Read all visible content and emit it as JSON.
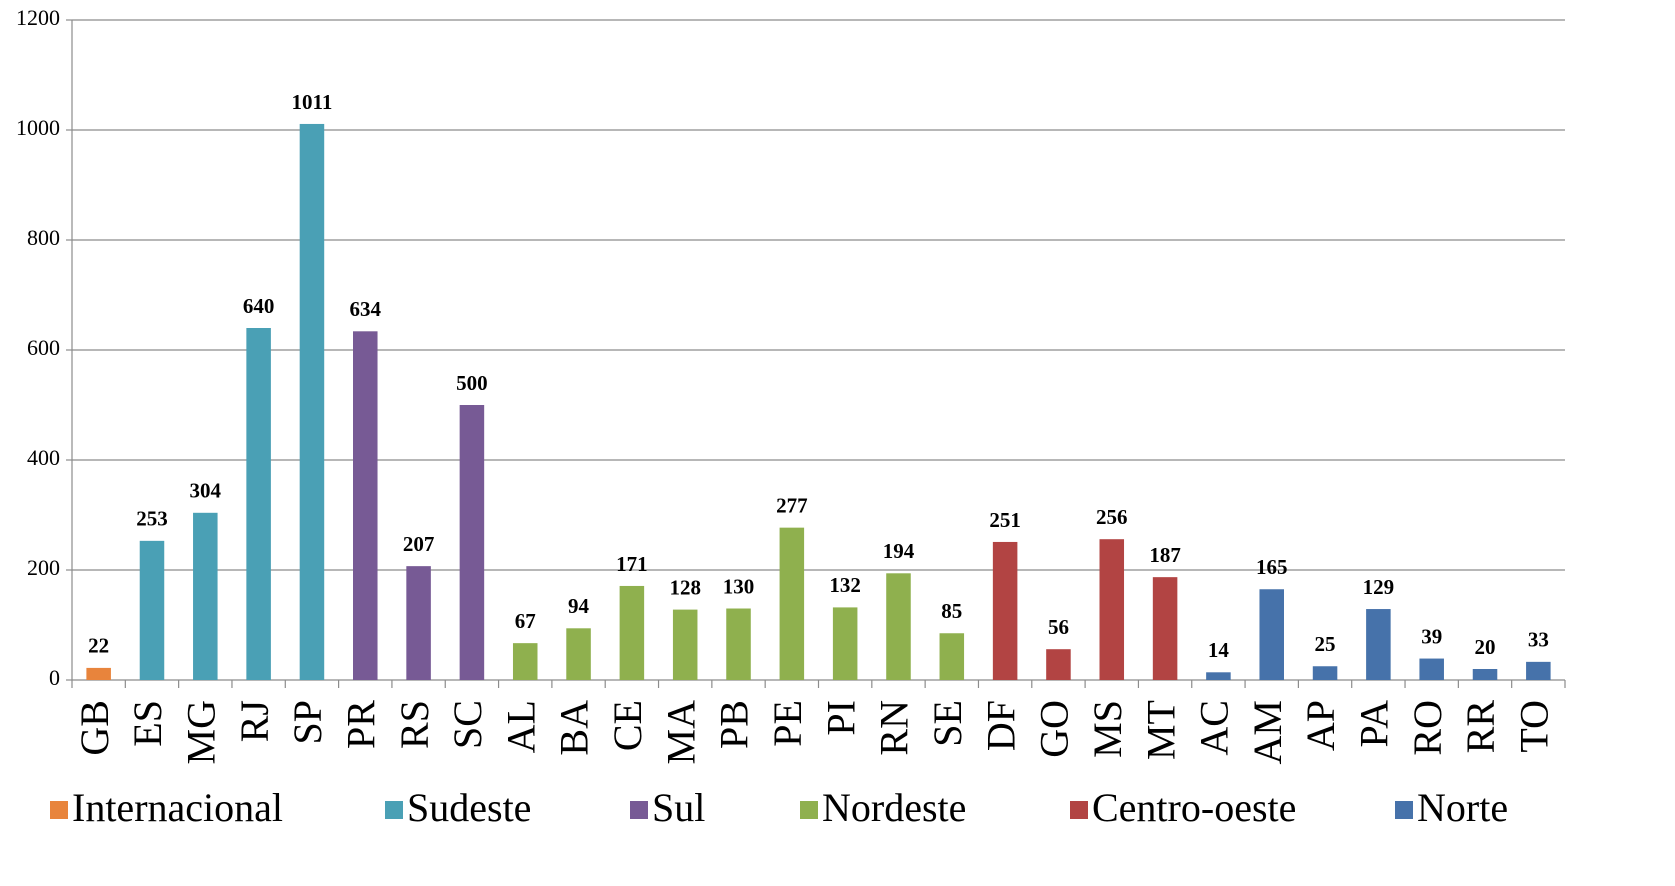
{
  "chart_data": {
    "type": "bar",
    "categories": [
      "GB",
      "ES",
      "MG",
      "RJ",
      "SP",
      "PR",
      "RS",
      "SC",
      "AL",
      "BA",
      "CE",
      "MA",
      "PB",
      "PE",
      "PI",
      "RN",
      "SE",
      "DF",
      "GO",
      "MS",
      "MT",
      "AC",
      "AM",
      "AP",
      "PA",
      "RO",
      "RR",
      "TO"
    ],
    "series": [
      {
        "name": "Internacional",
        "color": "#e8843c",
        "values": [
          22,
          null,
          null,
          null,
          null,
          null,
          null,
          null,
          null,
          null,
          null,
          null,
          null,
          null,
          null,
          null,
          null,
          null,
          null,
          null,
          null,
          null,
          null,
          null,
          null,
          null,
          null,
          null
        ]
      },
      {
        "name": "Sudeste",
        "color": "#4aa0b5",
        "values": [
          null,
          253,
          304,
          640,
          1011,
          null,
          null,
          null,
          null,
          null,
          null,
          null,
          null,
          null,
          null,
          null,
          null,
          null,
          null,
          null,
          null,
          null,
          null,
          null,
          null,
          null,
          null,
          null
        ]
      },
      {
        "name": "Sul",
        "color": "#775a95",
        "values": [
          null,
          null,
          null,
          null,
          null,
          634,
          207,
          500,
          null,
          null,
          null,
          null,
          null,
          null,
          null,
          null,
          null,
          null,
          null,
          null,
          null,
          null,
          null,
          null,
          null,
          null,
          null,
          null
        ]
      },
      {
        "name": "Nordeste",
        "color": "#8fb04e",
        "values": [
          null,
          null,
          null,
          null,
          null,
          null,
          null,
          null,
          67,
          94,
          171,
          128,
          130,
          277,
          132,
          194,
          85,
          null,
          null,
          null,
          null,
          null,
          null,
          null,
          null,
          null,
          null,
          null
        ]
      },
      {
        "name": "Centro-oeste",
        "color": "#b24443",
        "values": [
          null,
          null,
          null,
          null,
          null,
          null,
          null,
          null,
          null,
          null,
          null,
          null,
          null,
          null,
          null,
          null,
          null,
          251,
          56,
          256,
          187,
          null,
          null,
          null,
          null,
          null,
          null,
          null
        ]
      },
      {
        "name": "Norte",
        "color": "#4672aa",
        "values": [
          null,
          null,
          null,
          null,
          null,
          null,
          null,
          null,
          null,
          null,
          null,
          null,
          null,
          null,
          null,
          null,
          null,
          null,
          null,
          null,
          null,
          14,
          165,
          25,
          129,
          39,
          20,
          33
        ]
      }
    ],
    "ylim": [
      0,
      1200
    ],
    "yticks": [
      0,
      200,
      400,
      600,
      800,
      1000,
      1200
    ],
    "grid": true,
    "legend": "bottom"
  }
}
